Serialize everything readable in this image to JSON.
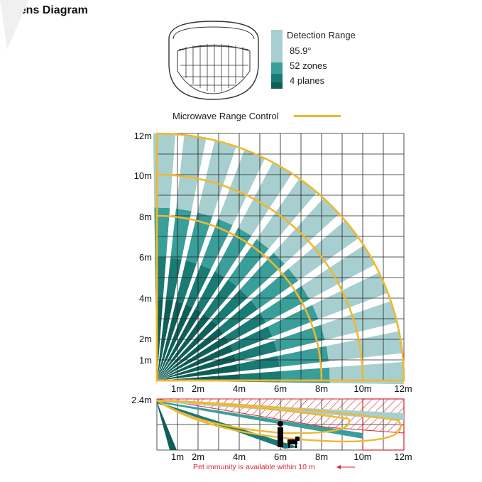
{
  "title": "Lens Diagram",
  "legend": {
    "heading": "Detection Range",
    "angle": "85.9°",
    "zones": "52 zones",
    "planes": "4 planes",
    "microwave": "Microwave Range Control"
  },
  "colors": {
    "light": "#a7cfcf",
    "mid": "#3a9e9a",
    "dark": "#1a7a74",
    "darkest": "#0f5f59",
    "microwave": "#f0b731",
    "pet_hatch": "#d6262e",
    "grid": "#222222"
  },
  "top_chart": {
    "y_ticks": [
      "12m",
      "10m",
      "8m",
      "6m",
      "4m",
      "2m",
      "1m"
    ],
    "x_ticks": [
      "1m",
      "2m",
      "4m",
      "6m",
      "8m",
      "10m",
      "12m"
    ]
  },
  "side_chart": {
    "y_tick": "2.4m",
    "x_ticks": [
      "1m",
      "2m",
      "4m",
      "6m",
      "8m",
      "10m",
      "12m"
    ],
    "note": "Pet immunity is available within 10 m"
  }
}
